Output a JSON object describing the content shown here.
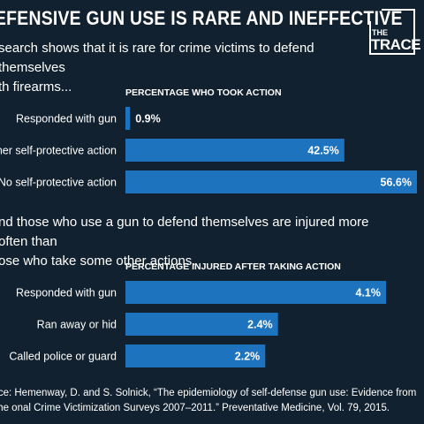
{
  "title": "EFENSIVE GUN USE IS RARE AND INEFFECTIVE",
  "logo": {
    "line1": "THE",
    "line2": "TRACE"
  },
  "subtitle1": "search shows that it is rare for crime victims to defend themselves\nth firearms...",
  "subtitle2": "nd those who use a gun to defend themselves are injured more often than\nose who take some other actions.",
  "source": "rce: Hemenway, D. and S. Solnick, “The epidemiology of self-defense gun use: Evidence from the onal Crime Victimization Surveys 2007–2011.” Preventative Medicine, Vol. 79, 2015.",
  "colors": {
    "background": "#11212f",
    "bar": "#1e73be",
    "text": "#ffffff"
  },
  "chart_data": [
    {
      "type": "bar",
      "orientation": "horizontal",
      "title": "PERCENTAGE WHO TOOK ACTION",
      "categories": [
        "Responded with gun",
        "ner self-protective action",
        "No self-protective action"
      ],
      "values": [
        0.9,
        42.5,
        56.6
      ],
      "labels": [
        "0.9%",
        "42.5%",
        "56.6%"
      ],
      "xlim": [
        0,
        56.6
      ]
    },
    {
      "type": "bar",
      "orientation": "horizontal",
      "title": "PERCENTAGE INJURED AFTER TAKING ACTION",
      "categories": [
        "Responded with gun",
        "Ran away or hid",
        "Called police or guard"
      ],
      "values": [
        4.1,
        2.4,
        2.2
      ],
      "labels": [
        "4.1%",
        "2.4%",
        "2.2%"
      ],
      "xlim": [
        0,
        4.1
      ]
    }
  ]
}
